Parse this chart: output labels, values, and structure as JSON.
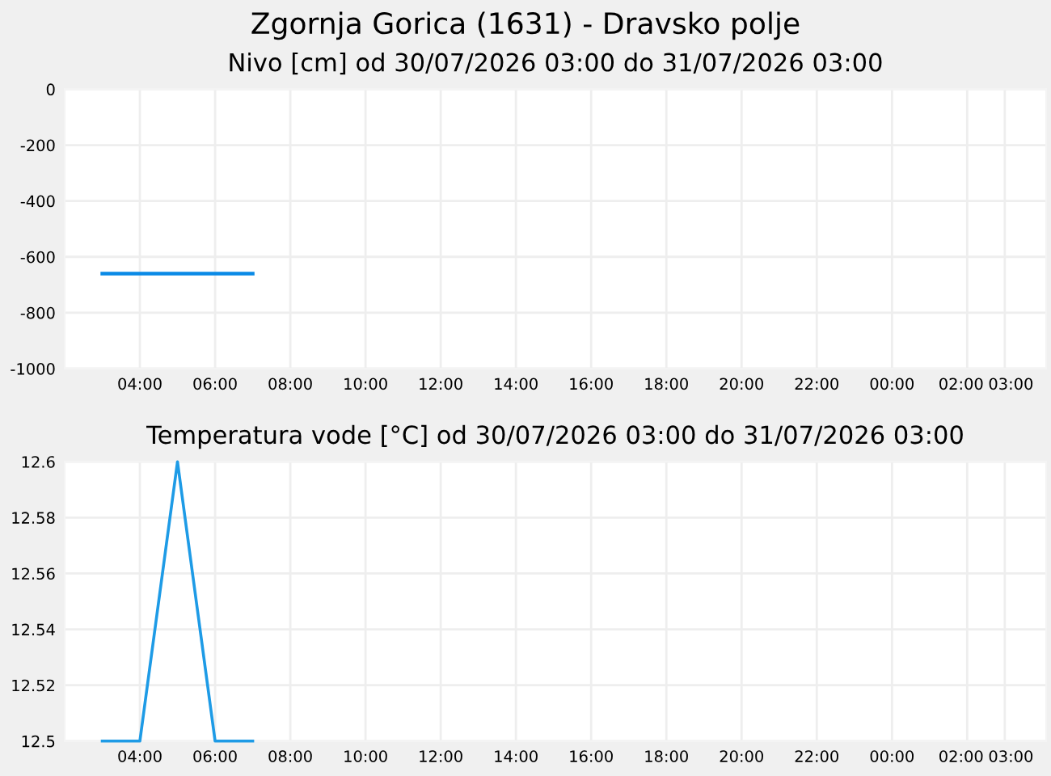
{
  "chart_data": [
    {
      "type": "line",
      "title": "Zgornja Gorica (1631) - Dravsko polje",
      "subtitle": "Nivo [cm] od 30/07/2026 03:00 do 31/07/2026 03:00",
      "series": [
        {
          "color": "#0a8ae6",
          "x": [
            "2026-07-30T03:00",
            "2026-07-30T07:00"
          ],
          "values": [
            -660,
            -660
          ]
        }
      ],
      "xlim": [
        "2026-07-30T02:00",
        "2026-07-31T04:06"
      ],
      "xticks": [
        {
          "value": "2026-07-30T04:00",
          "label": "04:00"
        },
        {
          "value": "2026-07-30T06:00",
          "label": "06:00"
        },
        {
          "value": "2026-07-30T08:00",
          "label": "08:00"
        },
        {
          "value": "2026-07-30T10:00",
          "label": "10:00"
        },
        {
          "value": "2026-07-30T12:00",
          "label": "12:00"
        },
        {
          "value": "2026-07-30T14:00",
          "label": "14:00"
        },
        {
          "value": "2026-07-30T16:00",
          "label": "16:00"
        },
        {
          "value": "2026-07-30T18:00",
          "label": "18:00"
        },
        {
          "value": "2026-07-30T20:00",
          "label": "20:00"
        },
        {
          "value": "2026-07-30T22:00",
          "label": "22:00"
        },
        {
          "value": "2026-07-31T00:00",
          "label": "00:00"
        },
        {
          "value": "2026-07-31T02:00",
          "label": "02:00"
        },
        {
          "value": "2026-07-31T03:00",
          "label": "03:00"
        }
      ],
      "ylim": [
        -1000,
        0
      ],
      "yticks": [
        0,
        -200,
        -400,
        -600,
        -800,
        -1000
      ],
      "grid": true
    },
    {
      "type": "line",
      "title": "Temperatura vode [°C] od 30/07/2026 03:00 do 31/07/2026 03:00",
      "series": [
        {
          "color": "#1e9be6",
          "x": [
            "2026-07-30T03:00",
            "2026-07-30T04:00",
            "2026-07-30T05:00",
            "2026-07-30T06:00",
            "2026-07-30T07:00"
          ],
          "values": [
            12.5,
            12.5,
            12.6,
            12.5,
            12.5
          ]
        }
      ],
      "xlim": [
        "2026-07-30T02:00",
        "2026-07-31T04:06"
      ],
      "xticks": [
        {
          "value": "2026-07-30T04:00",
          "label": "04:00"
        },
        {
          "value": "2026-07-30T06:00",
          "label": "06:00"
        },
        {
          "value": "2026-07-30T08:00",
          "label": "08:00"
        },
        {
          "value": "2026-07-30T10:00",
          "label": "10:00"
        },
        {
          "value": "2026-07-30T12:00",
          "label": "12:00"
        },
        {
          "value": "2026-07-30T14:00",
          "label": "14:00"
        },
        {
          "value": "2026-07-30T16:00",
          "label": "16:00"
        },
        {
          "value": "2026-07-30T18:00",
          "label": "18:00"
        },
        {
          "value": "2026-07-30T20:00",
          "label": "20:00"
        },
        {
          "value": "2026-07-30T22:00",
          "label": "22:00"
        },
        {
          "value": "2026-07-31T00:00",
          "label": "00:00"
        },
        {
          "value": "2026-07-31T02:00",
          "label": "02:00"
        },
        {
          "value": "2026-07-31T03:00",
          "label": "03:00"
        }
      ],
      "ylim": [
        12.5,
        12.6
      ],
      "yticks": [
        12.5,
        12.52,
        12.54,
        12.56,
        12.58,
        12.6
      ],
      "grid": true
    }
  ]
}
